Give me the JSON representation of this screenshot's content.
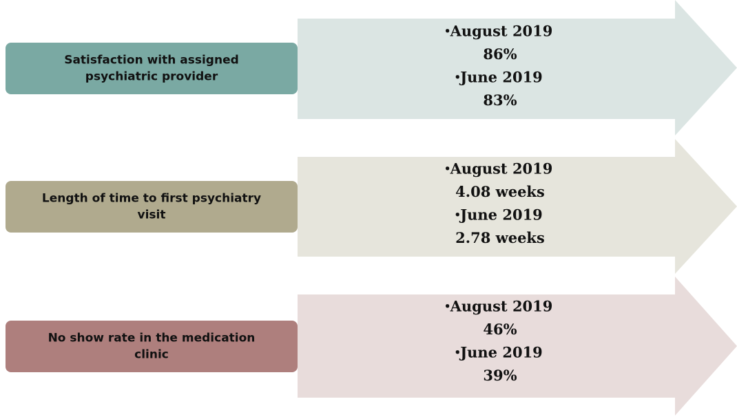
{
  "rows": [
    {
      "label": [
        "Satisfaction with assigned",
        "psychiatric provider"
      ],
      "items": [
        {
          "date": "August 2019",
          "value": "86%"
        },
        {
          "date": "June 2019",
          "value": "83%"
        }
      ]
    },
    {
      "label": [
        "Length of time to first psychiatry",
        "visit"
      ],
      "items": [
        {
          "date": "August 2019",
          "value": "4.08 weeks"
        },
        {
          "date": "June 2019",
          "value": "2.78 weeks"
        }
      ]
    },
    {
      "label": [
        "No show rate in the medication",
        "clinic"
      ],
      "items": [
        {
          "date": "August 2019",
          "value": "46%"
        },
        {
          "date": "June 2019",
          "value": "39%"
        }
      ]
    }
  ]
}
